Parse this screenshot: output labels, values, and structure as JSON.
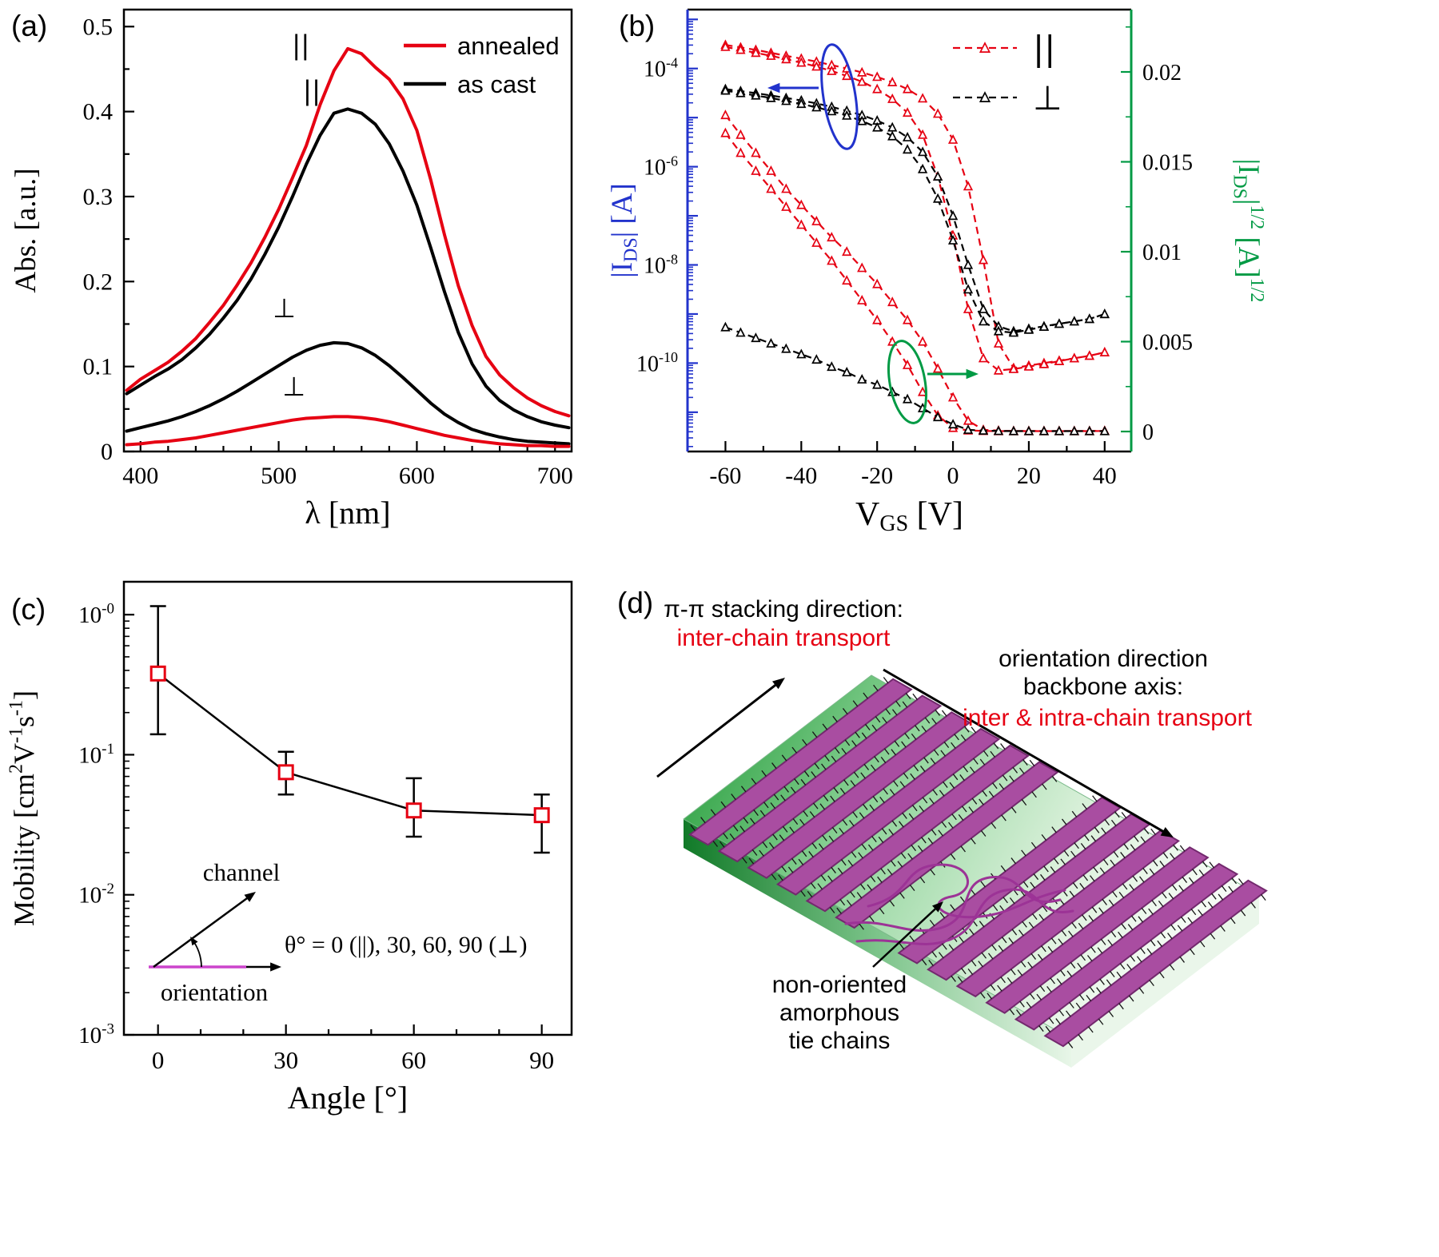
{
  "figure": {
    "background": "#ffffff",
    "accent_red": "#e60012",
    "axis_blue": "#2233cc",
    "axis_green": "#009a44"
  },
  "panels": {
    "a": {
      "label": "(a)"
    },
    "b": {
      "label": "(b)"
    },
    "c": {
      "label": "(c)"
    },
    "d": {
      "label": "(d)",
      "stacking_title": "π-π stacking direction:",
      "stacking_sub": "inter-chain transport",
      "orientation_title": "orientation direction\nbackbone axis:",
      "orientation_sub": "inter & intra-chain transport",
      "tie_label": "non-oriented\namorphous\ntie chains"
    }
  },
  "chart_data": [
    {
      "id": "a",
      "type": "line",
      "xlabel": "λ [nm]",
      "ylabel": "Abs. [a.u.]",
      "xlim": [
        388,
        712
      ],
      "ylim": [
        0,
        0.52
      ],
      "xticks": [
        400,
        500,
        600,
        700
      ],
      "yticks": [
        0,
        0.1,
        0.2,
        0.3,
        0.4,
        0.5
      ],
      "x": [
        390,
        400,
        410,
        420,
        430,
        440,
        450,
        460,
        470,
        480,
        490,
        500,
        510,
        520,
        530,
        540,
        550,
        560,
        570,
        580,
        590,
        600,
        610,
        620,
        630,
        640,
        650,
        660,
        670,
        680,
        690,
        700,
        710
      ],
      "series": [
        {
          "name": "annealed parallel",
          "color": "#e60012",
          "values": [
            0.072,
            0.085,
            0.095,
            0.105,
            0.118,
            0.133,
            0.152,
            0.172,
            0.196,
            0.222,
            0.252,
            0.285,
            0.322,
            0.36,
            0.408,
            0.448,
            0.474,
            0.468,
            0.452,
            0.438,
            0.415,
            0.378,
            0.32,
            0.255,
            0.195,
            0.148,
            0.112,
            0.09,
            0.075,
            0.063,
            0.054,
            0.047,
            0.042
          ]
        },
        {
          "name": "as cast parallel",
          "color": "#000000",
          "values": [
            0.068,
            0.078,
            0.088,
            0.097,
            0.108,
            0.122,
            0.138,
            0.157,
            0.178,
            0.203,
            0.232,
            0.264,
            0.3,
            0.338,
            0.372,
            0.398,
            0.403,
            0.398,
            0.385,
            0.362,
            0.33,
            0.29,
            0.24,
            0.188,
            0.14,
            0.103,
            0.077,
            0.06,
            0.049,
            0.041,
            0.035,
            0.031,
            0.028
          ]
        },
        {
          "name": "as cast perpendicular",
          "color": "#000000",
          "values": [
            0.024,
            0.028,
            0.032,
            0.036,
            0.041,
            0.047,
            0.054,
            0.062,
            0.071,
            0.081,
            0.091,
            0.101,
            0.111,
            0.119,
            0.125,
            0.128,
            0.127,
            0.122,
            0.113,
            0.101,
            0.087,
            0.072,
            0.057,
            0.044,
            0.034,
            0.026,
            0.021,
            0.017,
            0.014,
            0.012,
            0.011,
            0.01,
            0.009
          ]
        },
        {
          "name": "annealed perpendicular",
          "color": "#e60012",
          "values": [
            0.008,
            0.009,
            0.011,
            0.012,
            0.014,
            0.016,
            0.019,
            0.022,
            0.025,
            0.028,
            0.031,
            0.034,
            0.037,
            0.039,
            0.04,
            0.041,
            0.041,
            0.04,
            0.038,
            0.035,
            0.031,
            0.027,
            0.023,
            0.019,
            0.016,
            0.013,
            0.011,
            0.009,
            0.008,
            0.007,
            0.007,
            0.006,
            0.006
          ]
        }
      ],
      "legend": [
        {
          "label": "annealed",
          "color": "#e60012"
        },
        {
          "label": "as cast",
          "color": "#000000"
        }
      ],
      "annotations": [
        {
          "text": "||",
          "x": 516,
          "y": 0.468
        },
        {
          "text": "||",
          "x": 524,
          "y": 0.414
        },
        {
          "text": "⊥",
          "x": 504,
          "y": 0.158
        },
        {
          "text": "⊥",
          "x": 511,
          "y": 0.066
        }
      ]
    },
    {
      "id": "b",
      "type": "line",
      "xlabel": "V_{GS} [V]",
      "ylabel_left": "|I_{DS}| [A]",
      "ylabel_right": "|I_{DS}|^{1/2} [A]^{1/2}",
      "xlim": [
        -70,
        47
      ],
      "xticks": [
        -60,
        -40,
        -20,
        0,
        20,
        40
      ],
      "ylog_lim": [
        -11.8,
        -2.8
      ],
      "ytick_exponents": [
        -4,
        -6,
        -8,
        -10
      ],
      "yright_ticks": [
        0,
        0.005,
        0.01,
        0.015,
        0.02
      ],
      "vgs": [
        -60,
        -56,
        -52,
        -48,
        -44,
        -40,
        -36,
        -32,
        -28,
        -24,
        -20,
        -16,
        -12,
        -8,
        -4,
        0,
        4,
        8,
        12,
        16,
        20,
        24,
        28,
        32,
        36,
        40
      ],
      "series_log": [
        {
          "name": "parallel forward log10(I_DS)",
          "color": "#e60012",
          "values": [
            -3.52,
            -3.57,
            -3.62,
            -3.68,
            -3.74,
            -3.8,
            -3.86,
            -3.93,
            -4.0,
            -4.08,
            -4.17,
            -4.28,
            -4.42,
            -4.61,
            -4.92,
            -5.45,
            -6.4,
            -7.9,
            -9.6,
            -10.1,
            -10.05,
            -10.0,
            -9.95,
            -9.9,
            -9.85,
            -9.78
          ]
        },
        {
          "name": "parallel reverse log10(I_DS)",
          "color": "#e60012",
          "values": [
            -3.56,
            -3.62,
            -3.68,
            -3.74,
            -3.81,
            -3.88,
            -3.96,
            -4.05,
            -4.15,
            -4.27,
            -4.42,
            -4.62,
            -4.9,
            -5.35,
            -6.2,
            -7.4,
            -8.9,
            -9.9,
            -10.15,
            -10.12,
            -10.07,
            -10.02,
            -9.96,
            -9.9,
            -9.85,
            -9.78
          ]
        },
        {
          "name": "perpendicular forward log10(I_DS)",
          "color": "#000000",
          "values": [
            -4.42,
            -4.46,
            -4.5,
            -4.55,
            -4.6,
            -4.65,
            -4.71,
            -4.78,
            -4.86,
            -4.95,
            -5.06,
            -5.2,
            -5.4,
            -5.7,
            -6.2,
            -7.0,
            -8.0,
            -8.9,
            -9.25,
            -9.35,
            -9.3,
            -9.25,
            -9.2,
            -9.15,
            -9.1,
            -9.0
          ]
        },
        {
          "name": "perpendicular reverse log10(I_DS)",
          "color": "#000000",
          "values": [
            -4.45,
            -4.5,
            -4.55,
            -4.6,
            -4.66,
            -4.72,
            -4.79,
            -4.87,
            -4.96,
            -5.07,
            -5.2,
            -5.38,
            -5.65,
            -6.05,
            -6.65,
            -7.5,
            -8.5,
            -9.15,
            -9.35,
            -9.38,
            -9.32,
            -9.26,
            -9.2,
            -9.15,
            -9.1,
            -9.0
          ]
        }
      ],
      "series_sqrt": [
        {
          "name": "parallel forward sqrt(I_DS)",
          "color": "#e60012",
          "values": [
            0.0176,
            0.0165,
            0.0155,
            0.0145,
            0.0135,
            0.0126,
            0.0117,
            0.0108,
            0.01,
            0.0091,
            0.0082,
            0.0072,
            0.0062,
            0.005,
            0.0035,
            0.0019,
            0.0006,
            0.0001,
            5e-05,
            3e-05,
            3e-05,
            3e-05,
            3e-05,
            3e-05,
            3e-05,
            4e-05
          ]
        },
        {
          "name": "parallel reverse sqrt(I_DS)",
          "color": "#e60012",
          "values": [
            0.0166,
            0.0155,
            0.0145,
            0.0135,
            0.0125,
            0.0115,
            0.0105,
            0.0095,
            0.0084,
            0.0073,
            0.0062,
            0.005,
            0.0037,
            0.0022,
            0.0009,
            0.0002,
            6e-05,
            3e-05,
            2e-05,
            2e-05,
            2e-05,
            2e-05,
            2e-05,
            2e-05,
            2e-05,
            3e-05
          ]
        },
        {
          "name": "perpendicular sqrt(I_DS)",
          "color": "#000000",
          "values": [
            0.0058,
            0.0055,
            0.0052,
            0.0049,
            0.0046,
            0.0043,
            0.004,
            0.0036,
            0.0033,
            0.0029,
            0.0026,
            0.0022,
            0.0018,
            0.0013,
            0.0008,
            0.0004,
            0.0001,
            5e-05,
            3e-05,
            2e-05,
            2e-05,
            2e-05,
            2e-05,
            2e-05,
            2e-05,
            2e-05
          ]
        }
      ],
      "legend": [
        {
          "label": "||",
          "color": "#e60012"
        },
        {
          "label": "⊥",
          "color": "#000000"
        }
      ]
    },
    {
      "id": "c",
      "type": "scatter",
      "xlabel": "Angle [°]",
      "ylabel": "Mobility [cm^{2}V^{-1}s^{-1}]",
      "xlim": [
        -8,
        97
      ],
      "xticks": [
        0,
        30,
        60,
        90
      ],
      "ylog_lim": [
        -3,
        0.235
      ],
      "yticks": [
        {
          "e": 0,
          "label": "10^{-0}"
        },
        {
          "e": -1,
          "label": "10^{-1}"
        },
        {
          "e": -2,
          "label": "10^{-2}"
        },
        {
          "e": -3,
          "label": "10^{-3}"
        }
      ],
      "marker_color": "#e60012",
      "line_color": "#000000",
      "points": [
        {
          "x": 0,
          "y": 0.38,
          "err_lo": 0.14,
          "err_hi": 1.15
        },
        {
          "x": 30,
          "y": 0.075,
          "err_lo": 0.052,
          "err_hi": 0.105
        },
        {
          "x": 60,
          "y": 0.04,
          "err_lo": 0.026,
          "err_hi": 0.068
        },
        {
          "x": 90,
          "y": 0.037,
          "err_lo": 0.02,
          "err_hi": 0.052
        }
      ],
      "inset": {
        "channel_label": "channel",
        "orientation_label": "orientation",
        "formula": "θ° = 0 (||), 30, 60, 90 (⊥)",
        "orientation_color": "#cc44cc"
      }
    },
    {
      "id": "d",
      "type": "diagram",
      "labels": {
        "stacking_title": "π-π stacking direction:",
        "stacking_sub": "inter-chain transport",
        "orientation_title": "orientation direction\nbackbone axis:",
        "orientation_sub": "inter & intra-chain transport",
        "tie_label": "non-oriented\namorphous\ntie chains"
      },
      "colors": {
        "slab_dark": "#18962f",
        "slab_mid": "#8fd49a",
        "slab_light": "#f5fbf5",
        "side_dark": "#117a28",
        "ribbon": "#a94da1",
        "ribbon_edge": "#73296e",
        "tie": "#9c3396",
        "hair": "#151515"
      }
    }
  ]
}
